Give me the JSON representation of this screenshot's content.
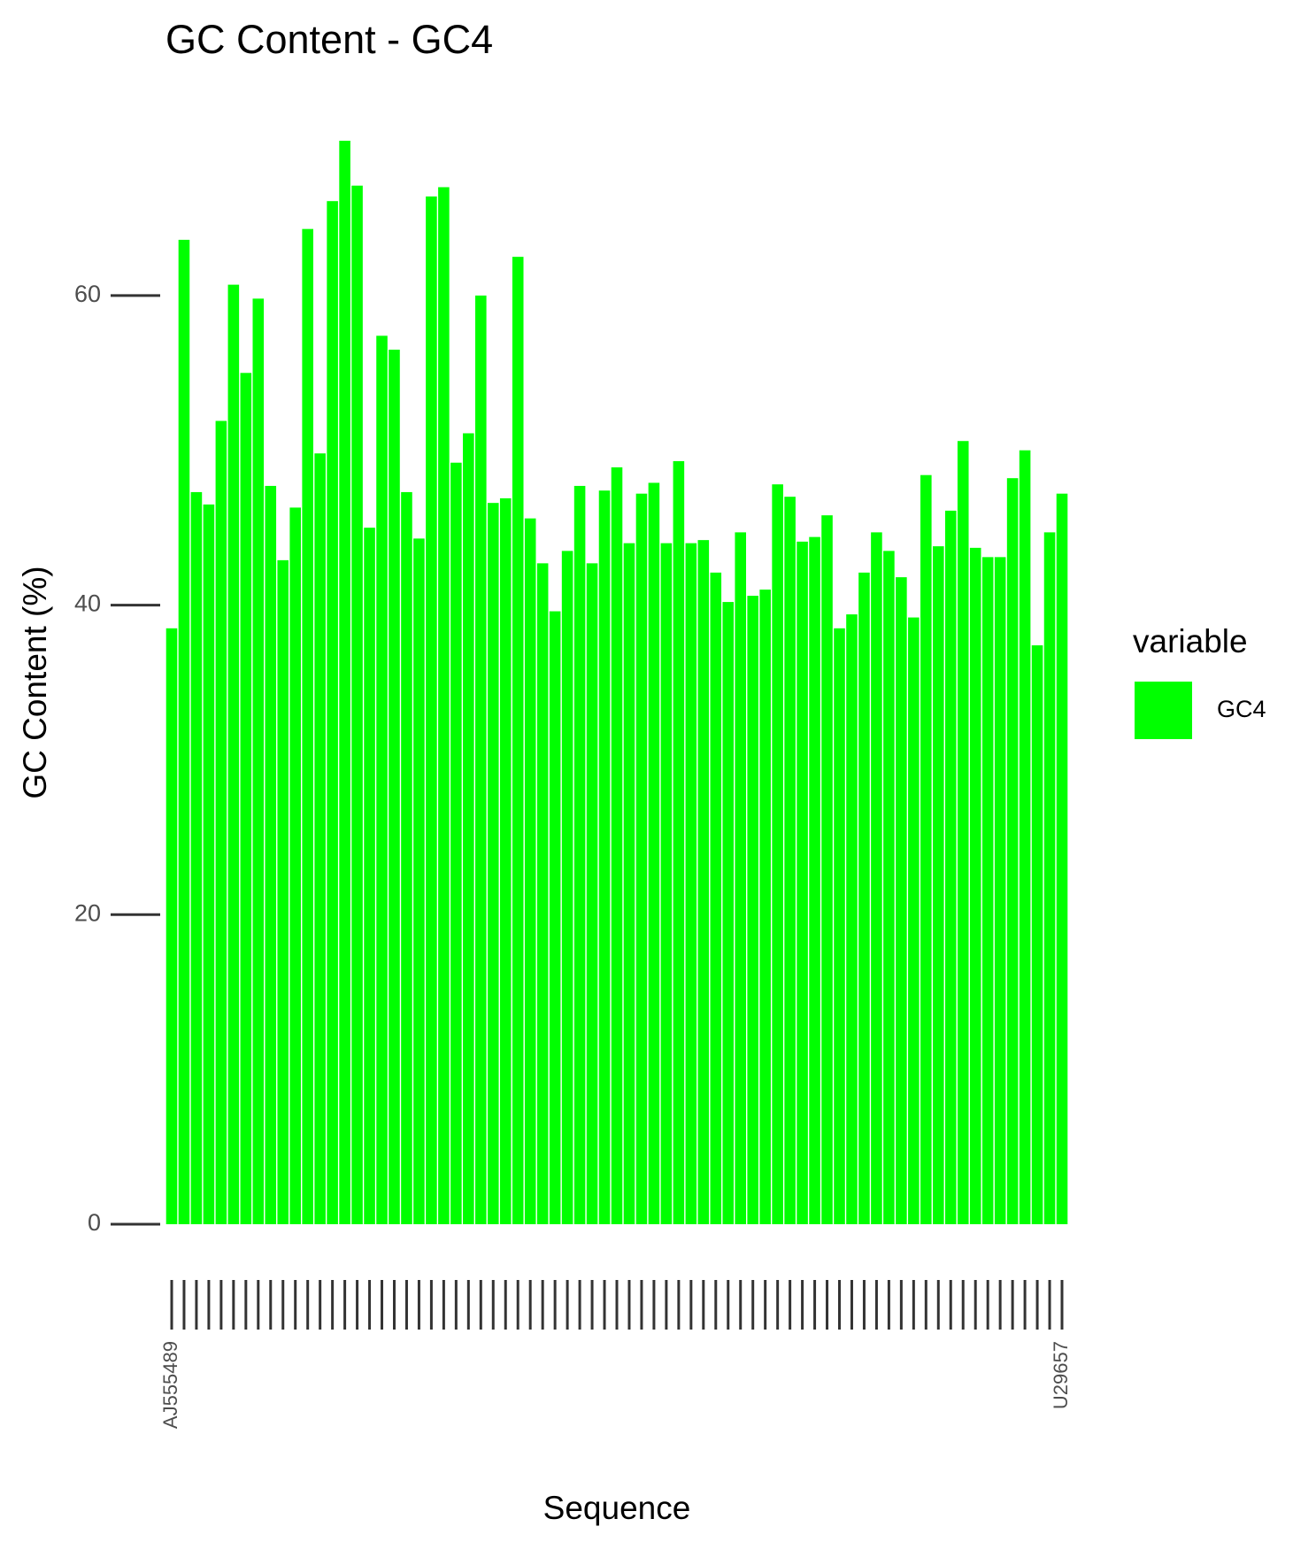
{
  "chart_data": {
    "type": "bar",
    "title": "GC Content - GC4",
    "x_label": "Sequence",
    "y_label": "GC Content (%)",
    "legend_title": "variable",
    "series": [
      {
        "name": "GC4",
        "color": "#00ff00",
        "values": [
          38.5,
          63.6,
          47.3,
          46.5,
          51.9,
          60.7,
          55.0,
          59.8,
          47.7,
          42.9,
          46.3,
          64.3,
          49.8,
          66.1,
          70.0,
          67.1,
          45.0,
          57.4,
          56.5,
          47.3,
          44.3,
          66.4,
          67.0,
          49.2,
          51.1,
          60.0,
          46.6,
          46.9,
          62.5,
          45.6,
          42.7,
          39.6,
          43.5,
          47.7,
          42.7,
          47.4,
          48.9,
          44.0,
          47.2,
          47.9,
          44.0,
          49.3,
          44.0,
          44.2,
          42.1,
          40.2,
          44.7,
          40.6,
          41.0,
          47.8,
          47.0,
          44.1,
          44.4,
          45.8,
          38.5,
          39.4,
          42.1,
          44.7,
          43.5,
          41.8,
          39.2,
          48.4,
          43.8,
          46.1,
          50.6,
          43.7,
          43.1,
          43.1,
          48.2,
          50.0,
          37.4,
          44.7,
          47.2
        ]
      }
    ],
    "categories": [
      "AJ555489",
      null,
      null,
      null,
      null,
      null,
      null,
      null,
      null,
      null,
      null,
      null,
      null,
      null,
      null,
      null,
      null,
      null,
      null,
      null,
      null,
      null,
      null,
      null,
      null,
      null,
      null,
      null,
      null,
      null,
      null,
      null,
      null,
      null,
      null,
      null,
      null,
      null,
      null,
      null,
      null,
      null,
      null,
      null,
      null,
      null,
      null,
      null,
      null,
      null,
      null,
      null,
      null,
      null,
      null,
      null,
      null,
      null,
      null,
      null,
      null,
      null,
      null,
      null,
      null,
      null,
      null,
      null,
      null,
      null,
      null,
      null,
      "U29657"
    ],
    "ylim": [
      0,
      70
    ],
    "yticks": [
      0,
      20,
      40,
      60
    ],
    "grid": false,
    "legend": "right"
  }
}
